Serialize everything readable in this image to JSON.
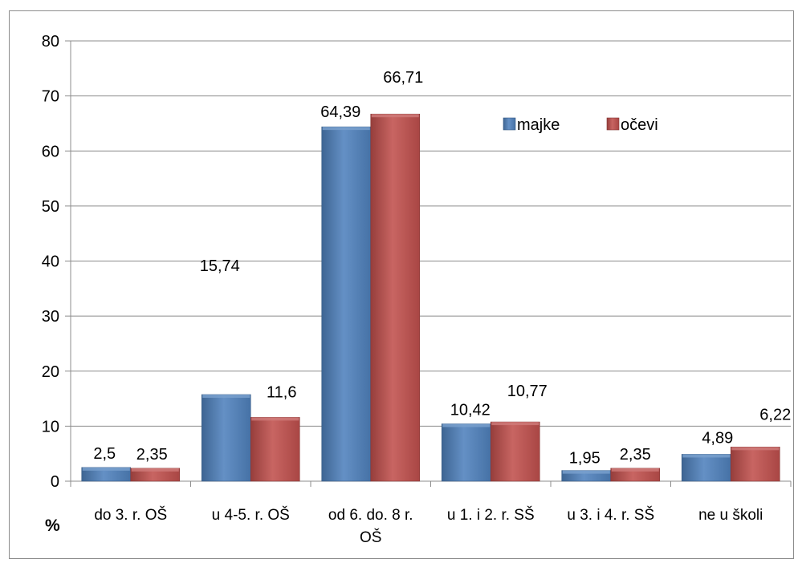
{
  "chart_data": {
    "type": "bar",
    "categories": [
      [
        "do 3. r. OŠ"
      ],
      [
        "u 4-5. r. OŠ"
      ],
      [
        "od 6. do. 8 r.",
        "OŠ"
      ],
      [
        "u 1. i 2. r. SŠ"
      ],
      [
        "u 3. i 4. r. SŠ"
      ],
      [
        "ne u školi"
      ]
    ],
    "series": [
      {
        "name": "majke",
        "color": "#4f81bd",
        "values": [
          2.5,
          15.74,
          64.39,
          10.42,
          1.95,
          4.89
        ],
        "labels": [
          "2,5",
          "15,74",
          "64,39",
          "10,42",
          "1,95",
          "4,89"
        ]
      },
      {
        "name": "očevi",
        "color": "#c0504d",
        "values": [
          2.35,
          11.6,
          66.71,
          10.77,
          2.35,
          6.22
        ],
        "labels": [
          "2,35",
          "11,6",
          "66,71",
          "10,77",
          "2,35",
          "6,22"
        ]
      }
    ],
    "ylim": [
      0,
      80
    ],
    "yticks": [
      0,
      10,
      20,
      30,
      40,
      50,
      60,
      70,
      80
    ],
    "unit_label": "%",
    "grid": true,
    "legend_position": "top-right"
  }
}
